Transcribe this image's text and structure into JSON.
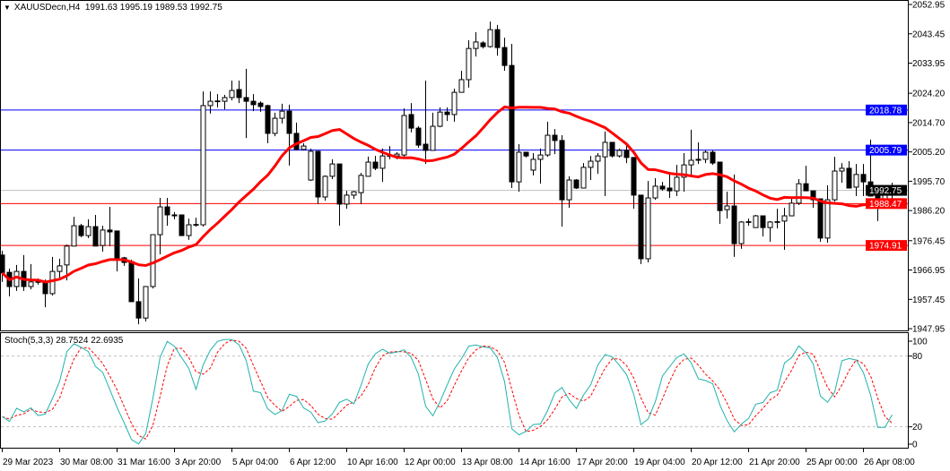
{
  "header": {
    "symbol_timeframe": "XAUUSDecn,H4",
    "ohlc_text": "1991.63 1995.19 1989.53 1992.75"
  },
  "stoch_header": {
    "name": "Stoch(5,3,3)",
    "values_text": "28.7524 22.6935"
  },
  "colors": {
    "bull_body": "#ffffff",
    "bear_body": "#000000",
    "ma": "#ff0000",
    "stoch_main": "#20b2aa",
    "stoch_signal": "#ff0000",
    "resistance": "#0000ff",
    "support": "#ff0000",
    "bid_line": "#c0c0c0"
  },
  "chart_data": {
    "type": "candlestick",
    "symbol": "XAUUSDecn",
    "timeframe": "H4",
    "price_axis_ticks": [
      "2052.95",
      "2043.45",
      "2033.95",
      "2024.20",
      "2014.70",
      "2005.20",
      "1995.70",
      "1986.20",
      "1976.45",
      "1966.95",
      "1957.45",
      "1947.95"
    ],
    "ylim": [
      1947.95,
      2052.95
    ],
    "time_labels": [
      {
        "bar": 0,
        "label": "29 Mar 2023"
      },
      {
        "bar": 8,
        "label": "30 Mar 08:00"
      },
      {
        "bar": 16,
        "label": "31 Mar 16:00"
      },
      {
        "bar": 24,
        "label": "3 Apr 20:00"
      },
      {
        "bar": 32,
        "label": "5 Apr 04:00"
      },
      {
        "bar": 40,
        "label": "6 Apr 12:00"
      },
      {
        "bar": 48,
        "label": "10 Apr 16:00"
      },
      {
        "bar": 56,
        "label": "12 Apr 00:00"
      },
      {
        "bar": 64,
        "label": "13 Apr 08:00"
      },
      {
        "bar": 72,
        "label": "14 Apr 16:00"
      },
      {
        "bar": 80,
        "label": "17 Apr 20:00"
      },
      {
        "bar": 88,
        "label": "19 Apr 04:00"
      },
      {
        "bar": 96,
        "label": "20 Apr 12:00"
      },
      {
        "bar": 104,
        "label": "21 Apr 20:00"
      },
      {
        "bar": 112,
        "label": "25 Apr 00:00"
      },
      {
        "bar": 120,
        "label": "26 Apr 08:00"
      }
    ],
    "ohlc": [
      [
        1971.8,
        1973.2,
        1963.1,
        1966.0
      ],
      [
        1966.2,
        1967.4,
        1958.4,
        1961.6
      ],
      [
        1961.6,
        1968.6,
        1960.2,
        1966.5
      ],
      [
        1966.5,
        1971.8,
        1960.2,
        1961.6
      ],
      [
        1961.6,
        1968.9,
        1960.7,
        1963.1
      ],
      [
        1963.1,
        1964.2,
        1962.2,
        1963.2
      ],
      [
        1963.1,
        1963.9,
        1954.9,
        1959.3
      ],
      [
        1959.3,
        1971.2,
        1958.7,
        1966.5
      ],
      [
        1966.5,
        1970.6,
        1964.5,
        1968.3
      ],
      [
        1968.6,
        1975.2,
        1963.6,
        1974.7
      ],
      [
        1974.7,
        1984.2,
        1974.7,
        1981.3
      ],
      [
        1981.3,
        1981.9,
        1977.6,
        1978.1
      ],
      [
        1978.1,
        1983.4,
        1977.3,
        1981.0
      ],
      [
        1981.0,
        1984.8,
        1974.7,
        1974.7
      ],
      [
        1974.9,
        1981.3,
        1972.9,
        1979.9
      ],
      [
        1979.9,
        1987.4,
        1974.7,
        1979.3
      ],
      [
        1979.6,
        1979.6,
        1966.5,
        1970.3
      ],
      [
        1970.9,
        1971.2,
        1968.3,
        1969.4
      ],
      [
        1969.7,
        1970.3,
        1956.7,
        1956.7
      ],
      [
        1956.7,
        1964.2,
        1949.4,
        1951.4
      ],
      [
        1951.4,
        1961.6,
        1950.3,
        1961.6
      ],
      [
        1961.6,
        1978.4,
        1961.0,
        1978.4
      ],
      [
        1978.4,
        1990.3,
        1972.0,
        1987.4
      ],
      [
        1987.4,
        1990.3,
        1981.3,
        1984.8
      ],
      [
        1984.8,
        1985.7,
        1983.4,
        1984.5
      ],
      [
        1984.8,
        1984.8,
        1978.1,
        1978.1
      ],
      [
        1978.1,
        1983.6,
        1976.7,
        1981.6
      ],
      [
        1981.6,
        1983.9,
        1981.0,
        1981.7
      ],
      [
        1981.6,
        2024.8,
        1981.0,
        2020.2
      ],
      [
        2020.2,
        2024.8,
        2017.6,
        2021.6
      ],
      [
        2021.6,
        2023.9,
        2019.6,
        2021.7
      ],
      [
        2021.6,
        2023.7,
        2019.0,
        2022.8
      ],
      [
        2022.8,
        2028.3,
        2021.9,
        2025.1
      ],
      [
        2025.4,
        2028.3,
        2021.0,
        2022.8
      ],
      [
        2022.8,
        2032.1,
        2009.7,
        2021.6
      ],
      [
        2021.6,
        2023.9,
        2018.4,
        2020.5
      ],
      [
        2021.0,
        2021.6,
        2018.2,
        2019.9
      ],
      [
        2020.2,
        2020.5,
        2008.0,
        2011.2
      ],
      [
        2011.2,
        2017.9,
        2010.3,
        2016.1
      ],
      [
        2016.1,
        2020.8,
        2014.4,
        2018.4
      ],
      [
        2018.4,
        2020.5,
        2000.8,
        2011.2
      ],
      [
        2011.2,
        2014.7,
        2006.0,
        2006.0
      ],
      [
        2006.0,
        2008.0,
        2005.7,
        2007.1
      ],
      [
        1996.1,
        2006.3,
        1995.8,
        2005.4
      ],
      [
        2005.4,
        2005.4,
        1988.3,
        1990.6
      ],
      [
        1990.6,
        1997.6,
        1989.4,
        1997.3
      ],
      [
        1997.3,
        2002.8,
        1996.4,
        2001.3
      ],
      [
        2001.3,
        2001.3,
        1981.3,
        1988.3
      ],
      [
        1988.3,
        1992.6,
        1986.8,
        1991.2
      ],
      [
        1991.2,
        1992.6,
        1990.0,
        1992.3
      ],
      [
        1992.0,
        1998.4,
        1988.3,
        1997.6
      ],
      [
        1997.3,
        2003.7,
        1997.3,
        2001.9
      ],
      [
        2001.9,
        2003.9,
        1999.3,
        1999.9
      ],
      [
        1999.9,
        2006.3,
        1995.5,
        2003.9
      ],
      [
        2003.9,
        2007.1,
        2002.8,
        2004.0
      ],
      [
        2003.9,
        2005.1,
        2002.8,
        2004.5
      ],
      [
        2004.2,
        2019.3,
        2003.6,
        2017.0
      ],
      [
        2017.3,
        2021.0,
        2011.5,
        2012.9
      ],
      [
        2012.9,
        2013.5,
        2006.5,
        2007.4
      ],
      [
        2007.7,
        2028.3,
        2001.3,
        2005.7
      ],
      [
        2005.7,
        2017.9,
        2005.7,
        2013.5
      ],
      [
        2013.5,
        2019.6,
        2013.2,
        2018.1
      ],
      [
        2018.1,
        2019.6,
        2015.2,
        2017.3
      ],
      [
        2017.3,
        2025.7,
        2015.0,
        2024.5
      ],
      [
        2024.5,
        2031.5,
        2024.5,
        2028.6
      ],
      [
        2028.6,
        2041.4,
        2026.0,
        2038.7
      ],
      [
        2038.7,
        2044.0,
        2036.1,
        2040.8
      ],
      [
        2040.5,
        2041.1,
        2038.7,
        2039.3
      ],
      [
        2039.3,
        2047.4,
        2039.0,
        2044.8
      ],
      [
        2044.8,
        2046.3,
        2036.4,
        2039.0
      ],
      [
        2039.0,
        2042.2,
        2031.5,
        2033.2
      ],
      [
        2033.2,
        2040.2,
        1993.5,
        1995.5
      ],
      [
        1995.5,
        2007.7,
        1992.3,
        2005.1
      ],
      [
        2005.1,
        2005.1,
        2003.4,
        2003.9
      ],
      [
        1999.3,
        2004.8,
        1997.6,
        2002.8
      ],
      [
        2002.8,
        2006.3,
        1994.9,
        2004.2
      ],
      [
        2004.2,
        2015.0,
        2003.6,
        2010.6
      ],
      [
        2010.6,
        2012.6,
        2004.5,
        2008.9
      ],
      [
        2008.9,
        2010.6,
        1981.0,
        1989.7
      ],
      [
        1989.7,
        1997.3,
        1987.1,
        1996.1
      ],
      [
        1996.1,
        1996.4,
        1993.2,
        1993.5
      ],
      [
        1993.5,
        2001.6,
        1993.5,
        2000.2
      ],
      [
        2000.2,
        2003.9,
        1996.1,
        2002.2
      ],
      [
        2002.2,
        2004.8,
        1998.1,
        2003.9
      ],
      [
        2003.6,
        2011.8,
        1990.9,
        2008.3
      ],
      [
        2008.3,
        2008.3,
        2003.4,
        2003.9
      ],
      [
        2003.9,
        2006.3,
        2003.4,
        2005.7
      ],
      [
        2005.7,
        2007.7,
        2001.6,
        2003.4
      ],
      [
        2003.4,
        2003.4,
        1986.8,
        1991.2
      ],
      [
        1991.2,
        1991.2,
        1968.9,
        1970.6
      ],
      [
        1970.6,
        1995.8,
        1969.4,
        1990.3
      ],
      [
        1990.3,
        1996.7,
        1989.7,
        1994.1
      ],
      [
        1994.1,
        1995.5,
        1992.6,
        1993.2
      ],
      [
        1993.5,
        1998.7,
        1990.3,
        1992.6
      ],
      [
        1992.6,
        2001.0,
        1990.9,
        1997.0
      ],
      [
        1997.0,
        2004.8,
        1992.3,
        2001.0
      ],
      [
        2001.0,
        2012.4,
        1997.3,
        2002.5
      ],
      [
        2002.5,
        2008.3,
        2001.3,
        2002.8
      ],
      [
        2002.8,
        2005.7,
        2001.6,
        2005.1
      ],
      [
        2005.1,
        2005.7,
        2001.0,
        2001.6
      ],
      [
        2001.9,
        2001.9,
        1981.9,
        1986.2
      ],
      [
        1986.5,
        1992.3,
        1983.6,
        1987.7
      ],
      [
        1987.7,
        1997.9,
        1971.2,
        1975.5
      ],
      [
        1975.5,
        1982.8,
        1973.8,
        1982.5
      ],
      [
        1982.5,
        1983.6,
        1981.3,
        1982.6
      ],
      [
        1980.7,
        1984.8,
        1980.7,
        1984.5
      ],
      [
        1984.5,
        1984.5,
        1977.8,
        1980.7
      ],
      [
        1980.7,
        1982.8,
        1976.1,
        1982.5
      ],
      [
        1982.5,
        1986.8,
        1980.4,
        1982.6
      ],
      [
        1982.8,
        1987.1,
        1973.5,
        1984.5
      ],
      [
        1984.5,
        1990.6,
        1984.5,
        1988.6
      ],
      [
        1988.6,
        1996.4,
        1988.0,
        1994.9
      ],
      [
        1994.9,
        2000.7,
        1992.6,
        1992.6
      ],
      [
        1992.6,
        1992.6,
        1987.1,
        1989.7
      ],
      [
        1990.0,
        1990.0,
        1976.1,
        1977.3
      ],
      [
        1977.3,
        1994.4,
        1975.8,
        1989.7
      ],
      [
        1989.7,
        2003.6,
        1989.1,
        1999.0
      ],
      [
        1999.0,
        2001.6,
        1995.2,
        1999.9
      ],
      [
        1999.9,
        2002.2,
        1993.5,
        1993.5
      ],
      [
        1993.8,
        2001.3,
        1990.9,
        1997.9
      ],
      [
        1997.9,
        2001.3,
        1990.9,
        1995.5
      ],
      [
        1995.5,
        2009.2,
        1990.9,
        1990.9
      ],
      [
        1991.2,
        1992.3,
        1982.8,
        1988.0
      ],
      [
        1988.0,
        1991.8,
        1986.8,
        1991.5
      ],
      [
        1991.63,
        1995.19,
        1989.53,
        1992.75
      ]
    ],
    "moving_average": {
      "type": "SMA",
      "period": 20
    },
    "horizontal_levels": [
      {
        "price": "2018.78",
        "color": "#0000ff"
      },
      {
        "price": "2005.79",
        "color": "#0000ff"
      },
      {
        "price": "1988.47",
        "color": "#ff0000"
      },
      {
        "price": "1974.91",
        "color": "#ff0000"
      }
    ],
    "bid": "1992.75",
    "stochastic": {
      "k": 5,
      "d": 3,
      "slowing": 3,
      "levels": [
        "80",
        "20"
      ],
      "axis_ticks": [
        "100",
        "80",
        "20",
        "0"
      ],
      "ylim": [
        0,
        100
      ]
    }
  }
}
